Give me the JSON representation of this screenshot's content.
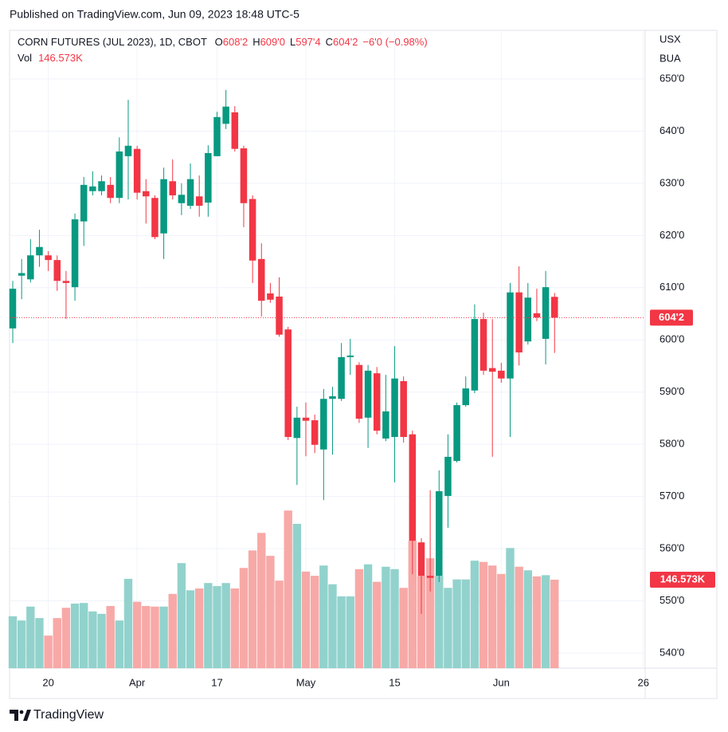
{
  "header": {
    "published": "Published on TradingView.com, Jun 09, 2023 18:48 UTC-5"
  },
  "footer": {
    "brand": "TradingView"
  },
  "chart_data": {
    "type": "candlestick",
    "legend": {
      "name": "CORN FUTURES (JUL 2023), 1D, CBOT",
      "ohlc": [
        {
          "key": "O",
          "label": "608'2"
        },
        {
          "key": "H",
          "label": "609'0"
        },
        {
          "key": "L",
          "label": "597'4"
        },
        {
          "key": "C",
          "label": "604'2"
        }
      ],
      "change": "−6'0 (−0.98%)",
      "volume_key": "Vol",
      "volume_label": "146.573K"
    },
    "axis_header": [
      "USX",
      "BUA"
    ],
    "up_color": "#089981",
    "down_color": "#f23645",
    "volume_up_color": "#92d2cc",
    "volume_down_color": "#f7a9a7",
    "grid": true,
    "xlim": [
      -0.36,
      71.2
    ],
    "xticks": [
      {
        "value": 4,
        "label": "20"
      },
      {
        "value": 14,
        "label": "Apr"
      },
      {
        "value": 23,
        "label": "17"
      },
      {
        "value": 33,
        "label": "May"
      },
      {
        "value": 43,
        "label": "15"
      },
      {
        "value": 55,
        "label": "Jun"
      },
      {
        "value": 71,
        "label": "26"
      }
    ],
    "ylim": [
      537.09,
      659.32
    ],
    "yticks": [
      {
        "value": 650,
        "label": "650'0"
      },
      {
        "value": 640,
        "label": "640'0"
      },
      {
        "value": 630,
        "label": "630'0"
      },
      {
        "value": 620,
        "label": "620'0"
      },
      {
        "value": 610,
        "label": "610'0"
      },
      {
        "value": 600,
        "label": "600'0"
      },
      {
        "value": 590,
        "label": "590'0"
      },
      {
        "value": 580,
        "label": "580'0"
      },
      {
        "value": 570,
        "label": "570'0"
      },
      {
        "value": 560,
        "label": "560'0"
      },
      {
        "value": 550,
        "label": "550'0"
      },
      {
        "value": 540,
        "label": "540'0"
      }
    ],
    "y2lim": [
      0,
      1056000
    ],
    "open": [
      602.2,
      612.3,
      611.6,
      616.2,
      616.2,
      615.3,
      611.3,
      610.1,
      622.7,
      628.5,
      628.5,
      629.7,
      627.2,
      635.2,
      636.6,
      628.5,
      627.2,
      620.4,
      630.4,
      626.2,
      625.7,
      627.5,
      626.3,
      635.2,
      641.4,
      643.6,
      636.7,
      627,
      615.5,
      608.9,
      608.3,
      602,
      581.2,
      585.1,
      584.6,
      579,
      588.7,
      588.7,
      596.7,
      595.2,
      585.1,
      593.6,
      581.1,
      581.4,
      592.1,
      581.9,
      561.2,
      554.8,
      554.8,
      570.1,
      576.8,
      587.5,
      590.3,
      604,
      594.6,
      594.1,
      592.6,
      609.1,
      599.7,
      605.1,
      600.2,
      608.25
    ],
    "high": [
      611.3,
      615.5,
      619.3,
      621.1,
      617,
      616.2,
      613.2,
      624.2,
      631.2,
      632.3,
      631.5,
      631.2,
      638.8,
      646,
      637.2,
      630.8,
      627.7,
      633,
      634.6,
      630,
      633.8,
      631.5,
      637.3,
      643.7,
      647.9,
      644.8,
      637.2,
      627.7,
      618.5,
      610.9,
      612,
      602.5,
      587.2,
      588,
      585.7,
      590.6,
      591,
      599.4,
      600.2,
      595.7,
      595.2,
      594.8,
      593.3,
      598.8,
      593,
      582.6,
      562,
      571.2,
      575,
      581.9,
      588,
      593,
      606.8,
      605.2,
      604,
      595.6,
      610.9,
      614.1,
      610.9,
      609.8,
      613.2,
      609
    ],
    "low": [
      599.4,
      607.8,
      611,
      614,
      613.2,
      609.4,
      604,
      607.5,
      618,
      627.7,
      627.7,
      626.2,
      626.2,
      626.9,
      626.9,
      622.3,
      619.3,
      615.5,
      626.9,
      623.9,
      625.1,
      623.6,
      623.6,
      635.2,
      640.4,
      636.1,
      621.6,
      610.9,
      604.5,
      607.1,
      600.6,
      580.8,
      572.2,
      577.7,
      578.3,
      569.3,
      578,
      588.3,
      593.3,
      584.1,
      579.3,
      581.9,
      580.6,
      572.7,
      580.3,
      555.1,
      547.5,
      551.8,
      553.6,
      564,
      576.5,
      587.2,
      589.8,
      593.3,
      577.6,
      591.8,
      581.4,
      595.1,
      599.1,
      603.6,
      595.3,
      597.5
    ],
    "close": [
      609.8,
      612.8,
      616.2,
      617.8,
      615.3,
      611.3,
      610.9,
      623.1,
      629.7,
      629.4,
      630.4,
      627.2,
      636.1,
      637.2,
      628.2,
      627.5,
      619.7,
      630.8,
      627.7,
      627.8,
      630.8,
      625.7,
      635.8,
      642.7,
      644.7,
      636.6,
      626.2,
      615.2,
      607.5,
      607.7,
      601,
      581.4,
      585.1,
      584.5,
      579.9,
      588.7,
      589.2,
      596.7,
      597,
      584.9,
      594.1,
      582.6,
      586.3,
      592.6,
      581.4,
      561.5,
      554.8,
      554.4,
      571,
      577.6,
      587.5,
      590.7,
      604,
      594.1,
      593.9,
      592.6,
      609.1,
      597.6,
      608.1,
      604.3,
      610.1,
      604.25
    ],
    "volume": [
      86000,
      79000,
      102000,
      83000,
      54000,
      83000,
      100000,
      107000,
      108000,
      94000,
      90000,
      103000,
      79000,
      148000,
      110000,
      103000,
      102000,
      102000,
      123000,
      174000,
      129000,
      132000,
      141000,
      136000,
      141000,
      132000,
      166000,
      195000,
      224000,
      186000,
      145000,
      261000,
      239000,
      160000,
      153000,
      170000,
      139000,
      119000,
      119000,
      164000,
      172000,
      143000,
      168000,
      164000,
      133000,
      211000,
      153000,
      182000,
      153000,
      133000,
      147000,
      147000,
      178000,
      176000,
      170000,
      156000,
      199000,
      168000,
      162000,
      152000,
      154000,
      146573
    ]
  }
}
